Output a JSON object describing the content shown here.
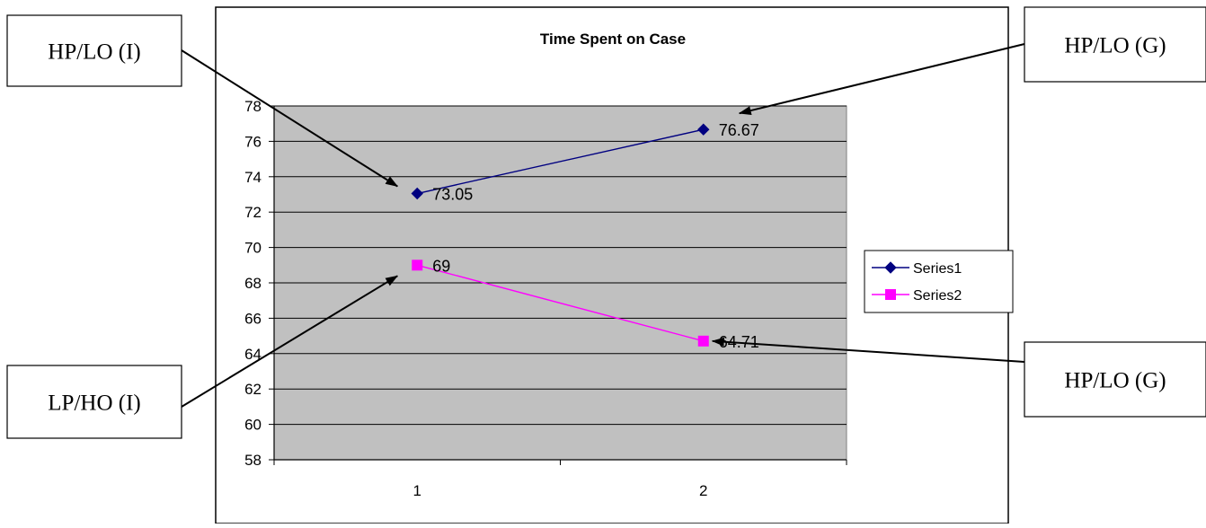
{
  "chart_data": {
    "type": "line",
    "title": "Time Spent on Case",
    "xlabel": "",
    "ylabel": "",
    "categories": [
      "1",
      "2"
    ],
    "ylim": [
      58,
      78
    ],
    "ytick_step": 2,
    "grid": true,
    "legend_position": "right",
    "series": [
      {
        "name": "Series1",
        "values": [
          73.05,
          76.67
        ],
        "color": "#000080",
        "marker": "diamond"
      },
      {
        "name": "Series2",
        "values": [
          69,
          64.71
        ],
        "color": "#FF00FF",
        "marker": "square"
      }
    ],
    "data_labels": [
      [
        "73.05",
        "76.67"
      ],
      [
        "69",
        "64.71"
      ]
    ],
    "plot_background": "#C0C0C0",
    "annotations": [
      {
        "text": "HP/LO (I)",
        "series": 0,
        "point": 0
      },
      {
        "text": "HP/LO (G)",
        "series": 0,
        "point": 1
      },
      {
        "text": "LP/HO (I)",
        "series": 1,
        "point": 0
      },
      {
        "text": "HP/LO (G)",
        "series": 1,
        "point": 1
      }
    ]
  }
}
